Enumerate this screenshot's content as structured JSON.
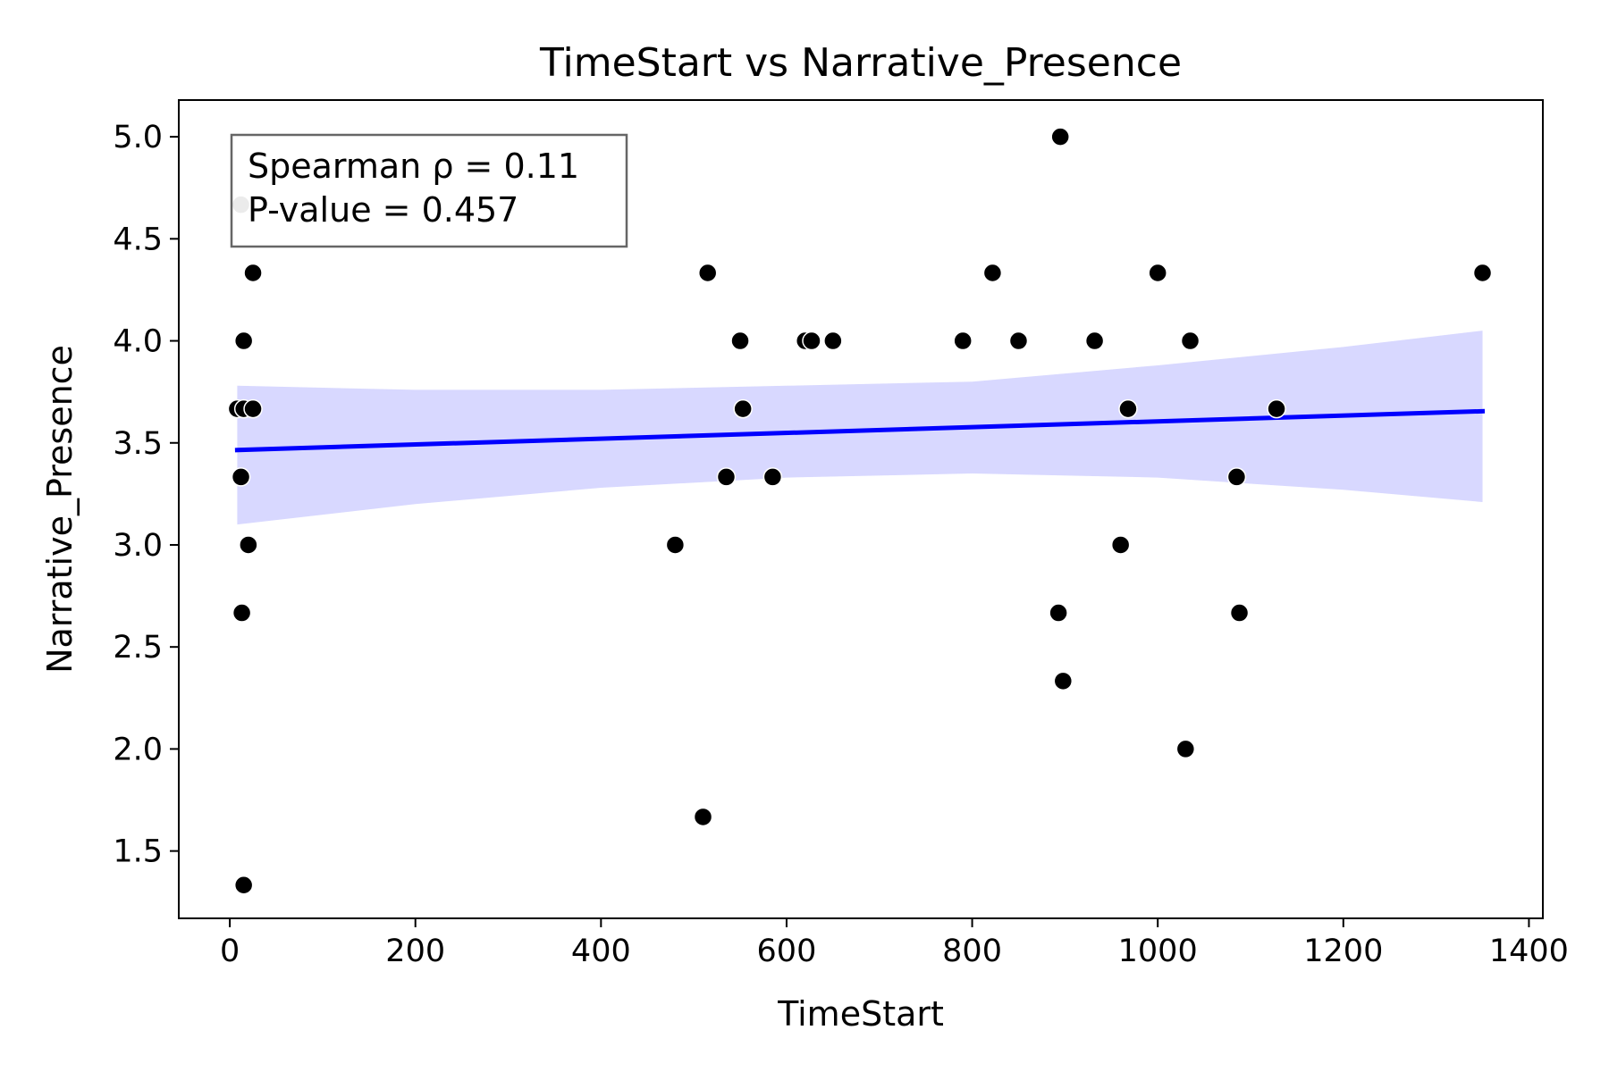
{
  "chart_data": {
    "type": "scatter",
    "title": "TimeStart vs Narrative_Presence",
    "xlabel": "TimeStart",
    "ylabel": "Narrative_Presence",
    "xlim": [
      -55,
      1415
    ],
    "ylim": [
      1.17,
      5.18
    ],
    "xticks": [
      0,
      200,
      400,
      600,
      800,
      1000,
      1200,
      1400
    ],
    "yticks": [
      1.5,
      2.0,
      2.5,
      3.0,
      3.5,
      4.0,
      4.5,
      5.0
    ],
    "xtick_labels": [
      "0",
      "200",
      "400",
      "600",
      "800",
      "1000",
      "1200",
      "1400"
    ],
    "ytick_labels": [
      "1.5",
      "2.0",
      "2.5",
      "3.0",
      "3.5",
      "4.0",
      "4.5",
      "5.0"
    ],
    "grid": false,
    "annotation": {
      "line1": "Spearman ρ = 0.11",
      "line2": "P-value = 0.457",
      "placement": "top-left"
    },
    "colors": {
      "points": "#000000",
      "highlight_point": "#999999",
      "point_edge": "#ffffff",
      "regression_line": "#0000ff",
      "confidence_band": "#d8d8ff"
    },
    "points": [
      {
        "x": 8,
        "y": 3.667
      },
      {
        "x": 15,
        "y": 3.667
      },
      {
        "x": 25,
        "y": 3.667
      },
      {
        "x": 12,
        "y": 3.333
      },
      {
        "x": 15,
        "y": 4.0
      },
      {
        "x": 25,
        "y": 4.333
      },
      {
        "x": 20,
        "y": 3.0
      },
      {
        "x": 13,
        "y": 2.667
      },
      {
        "x": 15,
        "y": 1.333
      },
      {
        "x": 480,
        "y": 3.0
      },
      {
        "x": 510,
        "y": 1.667
      },
      {
        "x": 515,
        "y": 4.333
      },
      {
        "x": 535,
        "y": 3.333
      },
      {
        "x": 550,
        "y": 4.0
      },
      {
        "x": 553,
        "y": 3.667
      },
      {
        "x": 585,
        "y": 3.333
      },
      {
        "x": 620,
        "y": 4.0
      },
      {
        "x": 627,
        "y": 4.0
      },
      {
        "x": 650,
        "y": 4.0
      },
      {
        "x": 790,
        "y": 4.0
      },
      {
        "x": 822,
        "y": 4.333
      },
      {
        "x": 850,
        "y": 4.0
      },
      {
        "x": 895,
        "y": 5.0
      },
      {
        "x": 893,
        "y": 2.667
      },
      {
        "x": 898,
        "y": 2.333
      },
      {
        "x": 932,
        "y": 4.0
      },
      {
        "x": 960,
        "y": 3.0
      },
      {
        "x": 968,
        "y": 3.667
      },
      {
        "x": 1000,
        "y": 4.333
      },
      {
        "x": 1030,
        "y": 2.0
      },
      {
        "x": 1035,
        "y": 4.0
      },
      {
        "x": 1085,
        "y": 3.333
      },
      {
        "x": 1088,
        "y": 2.667
      },
      {
        "x": 1128,
        "y": 3.667
      },
      {
        "x": 1350,
        "y": 4.333
      }
    ],
    "highlight_points": [
      {
        "x": 12,
        "y": 4.667
      }
    ],
    "regression": {
      "x": [
        8,
        1350
      ],
      "y": [
        3.465,
        3.655
      ]
    },
    "confidence_band": [
      {
        "x": 8,
        "lo": 3.1,
        "hi": 3.78
      },
      {
        "x": 200,
        "lo": 3.2,
        "hi": 3.76
      },
      {
        "x": 400,
        "lo": 3.28,
        "hi": 3.76
      },
      {
        "x": 600,
        "lo": 3.33,
        "hi": 3.78
      },
      {
        "x": 800,
        "lo": 3.35,
        "hi": 3.8
      },
      {
        "x": 1000,
        "lo": 3.33,
        "hi": 3.88
      },
      {
        "x": 1200,
        "lo": 3.27,
        "hi": 3.97
      },
      {
        "x": 1350,
        "lo": 3.21,
        "hi": 4.05
      }
    ]
  }
}
